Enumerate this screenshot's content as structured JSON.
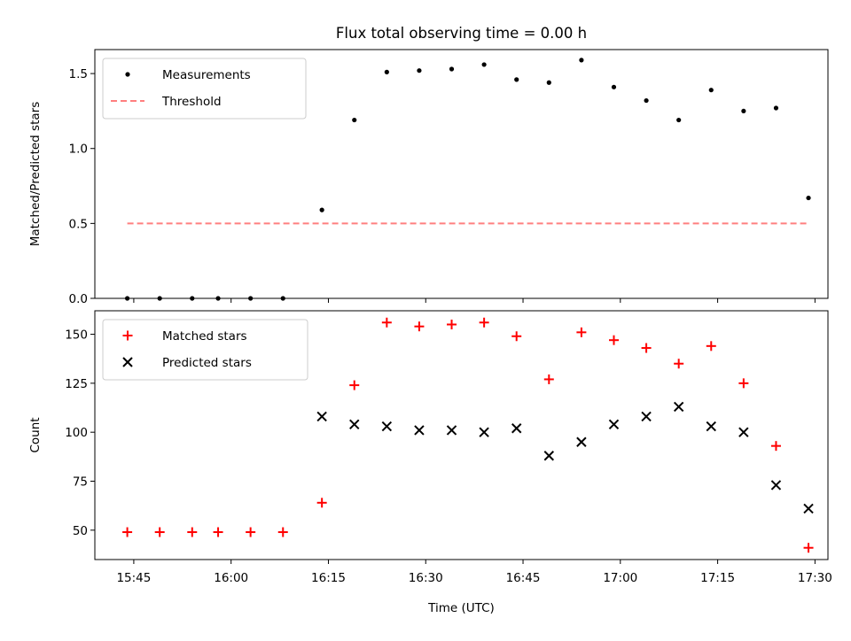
{
  "chart_data": [
    {
      "type": "scatter",
      "title": "Flux total observing time = 0.00 h",
      "xlabel": "",
      "ylabel": "Matched/Predicted stars",
      "xlim": [
        "15:39",
        "17:32"
      ],
      "ylim": [
        0,
        1.66
      ],
      "yticks": [
        0.0,
        0.5,
        1.0,
        1.5
      ],
      "ytick_labels": [
        "0.0",
        "0.5",
        "1.0",
        "1.5"
      ],
      "legend_position": "top-left",
      "series": [
        {
          "name": "Measurements",
          "marker": "dot",
          "color": "#000000",
          "x": [
            "15:44",
            "15:49",
            "15:54",
            "15:58",
            "16:03",
            "16:08",
            "16:14",
            "16:19",
            "16:24",
            "16:29",
            "16:34",
            "16:39",
            "16:44",
            "16:49",
            "16:54",
            "16:59",
            "17:04",
            "17:09",
            "17:14",
            "17:19",
            "17:24",
            "17:29"
          ],
          "y": [
            0,
            0,
            0,
            0,
            0,
            0,
            0.59,
            1.19,
            1.51,
            1.52,
            1.53,
            1.56,
            1.46,
            1.44,
            1.59,
            1.41,
            1.32,
            1.19,
            1.39,
            1.25,
            1.27,
            0.67
          ]
        },
        {
          "name": "Threshold",
          "marker": "dashed-line",
          "color": "#ff7f7f",
          "x": [
            "15:44",
            "17:29"
          ],
          "y": [
            0.5,
            0.5
          ]
        }
      ]
    },
    {
      "type": "scatter",
      "title": "",
      "xlabel": "Time (UTC)",
      "ylabel": "Count",
      "xlim": [
        "15:39",
        "17:32"
      ],
      "ylim": [
        35,
        162
      ],
      "yticks": [
        50,
        75,
        100,
        125,
        150
      ],
      "ytick_labels": [
        "50",
        "75",
        "100",
        "125",
        "150"
      ],
      "xticks": [
        "15:45",
        "16:00",
        "16:15",
        "16:30",
        "16:45",
        "17:00",
        "17:15",
        "17:30"
      ],
      "legend_position": "top-left",
      "series": [
        {
          "name": "Matched stars",
          "marker": "plus",
          "color": "#ff0000",
          "x": [
            "15:44",
            "15:49",
            "15:54",
            "15:58",
            "16:03",
            "16:08",
            "16:14",
            "16:19",
            "16:24",
            "16:29",
            "16:34",
            "16:39",
            "16:44",
            "16:49",
            "16:54",
            "16:59",
            "17:04",
            "17:09",
            "17:14",
            "17:19",
            "17:24",
            "17:29"
          ],
          "y": [
            49,
            49,
            49,
            49,
            49,
            49,
            64,
            124,
            156,
            154,
            155,
            156,
            149,
            127,
            151,
            147,
            143,
            135,
            144,
            125,
            93,
            41
          ]
        },
        {
          "name": "Predicted stars",
          "marker": "x",
          "color": "#000000",
          "x": [
            "16:14",
            "16:19",
            "16:24",
            "16:29",
            "16:34",
            "16:39",
            "16:44",
            "16:49",
            "16:54",
            "16:59",
            "17:04",
            "17:09",
            "17:14",
            "17:19",
            "17:24",
            "17:29"
          ],
          "y": [
            108,
            104,
            103,
            101,
            101,
            100,
            102,
            88,
            95,
            104,
            108,
            113,
            103,
            100,
            73,
            61
          ]
        }
      ]
    }
  ]
}
